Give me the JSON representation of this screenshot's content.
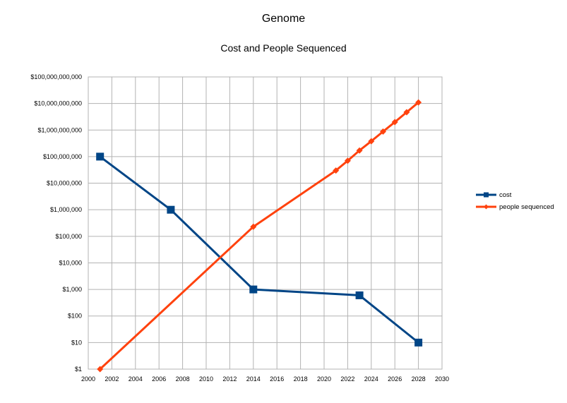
{
  "chart_data": {
    "type": "line",
    "title": "Genome",
    "subtitle": "Cost and People Sequenced",
    "xlabel": "",
    "ylabel": "",
    "x_scale": "linear",
    "y_scale": "log",
    "xlim": [
      2000,
      2030
    ],
    "ylim": [
      1,
      100000000000
    ],
    "x_ticks": [
      "2000",
      "2002",
      "2004",
      "2006",
      "2008",
      "2010",
      "2012",
      "2014",
      "2016",
      "2018",
      "2020",
      "2022",
      "2024",
      "2026",
      "2028",
      "2030"
    ],
    "y_ticks": [
      "$1",
      "$10",
      "$100",
      "$1,000",
      "$10,000",
      "$100,000",
      "$1,000,000",
      "$10,000,000",
      "$100,000,000",
      "$1,000,000,000",
      "$10,000,000,000",
      "$100,000,000,000"
    ],
    "grid": true,
    "legend_position": "right",
    "series": [
      {
        "name": "cost",
        "color": "#004586",
        "marker": "square",
        "points": [
          {
            "x": 2001,
            "y": 100000000
          },
          {
            "x": 2007,
            "y": 1000000
          },
          {
            "x": 2014,
            "y": 1000
          },
          {
            "x": 2023,
            "y": 600
          },
          {
            "x": 2028,
            "y": 10
          }
        ]
      },
      {
        "name": "people sequenced",
        "color": "#ff420e",
        "marker": "diamond",
        "points": [
          {
            "x": 2001,
            "y": 1
          },
          {
            "x": 2014,
            "y": 230000
          },
          {
            "x": 2021,
            "y": 30000000
          },
          {
            "x": 2022,
            "y": 70000000
          },
          {
            "x": 2023,
            "y": 170000000
          },
          {
            "x": 2024,
            "y": 380000000
          },
          {
            "x": 2025,
            "y": 880000000
          },
          {
            "x": 2026,
            "y": 2000000000
          },
          {
            "x": 2027,
            "y": 4700000000
          },
          {
            "x": 2028,
            "y": 11000000000
          }
        ]
      }
    ]
  }
}
